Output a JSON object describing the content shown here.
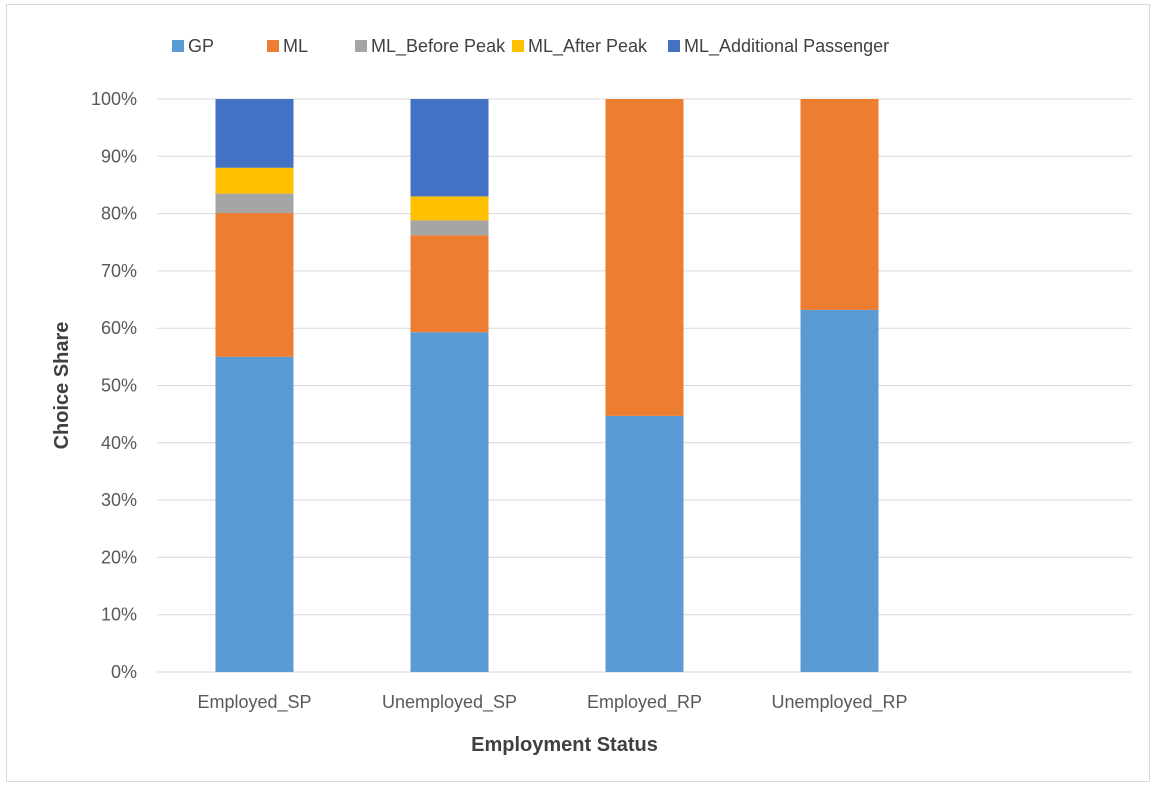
{
  "chart_data": {
    "type": "bar",
    "stacked": true,
    "categories": [
      "Employed_SP",
      "Unemployed_SP",
      "Employed_RP",
      "Unemployed_RP"
    ],
    "series": [
      {
        "name": "GP",
        "color": "#5B9BD5",
        "values": [
          55.0,
          59.3,
          44.7,
          63.2
        ]
      },
      {
        "name": "ML",
        "color": "#ED7D31",
        "values": [
          25.1,
          16.9,
          55.3,
          36.8
        ]
      },
      {
        "name": "ML_Before Peak",
        "color": "#A5A5A5",
        "values": [
          3.4,
          2.6,
          0,
          0
        ]
      },
      {
        "name": "ML_After Peak",
        "color": "#FFC000",
        "values": [
          4.5,
          4.2,
          0,
          0
        ]
      },
      {
        "name": "ML_Additional Passenger",
        "color": "#4472C4",
        "values": [
          12.0,
          17.0,
          0,
          0
        ]
      }
    ],
    "xlabel": "Employment Status",
    "ylabel": "Choice Share",
    "ylim": [
      0,
      100
    ],
    "ytick_step": 10,
    "ytick_labels": [
      "0%",
      "10%",
      "20%",
      "30%",
      "40%",
      "50%",
      "60%",
      "70%",
      "80%",
      "90%",
      "100%"
    ],
    "grid": true,
    "legend_position": "top"
  }
}
